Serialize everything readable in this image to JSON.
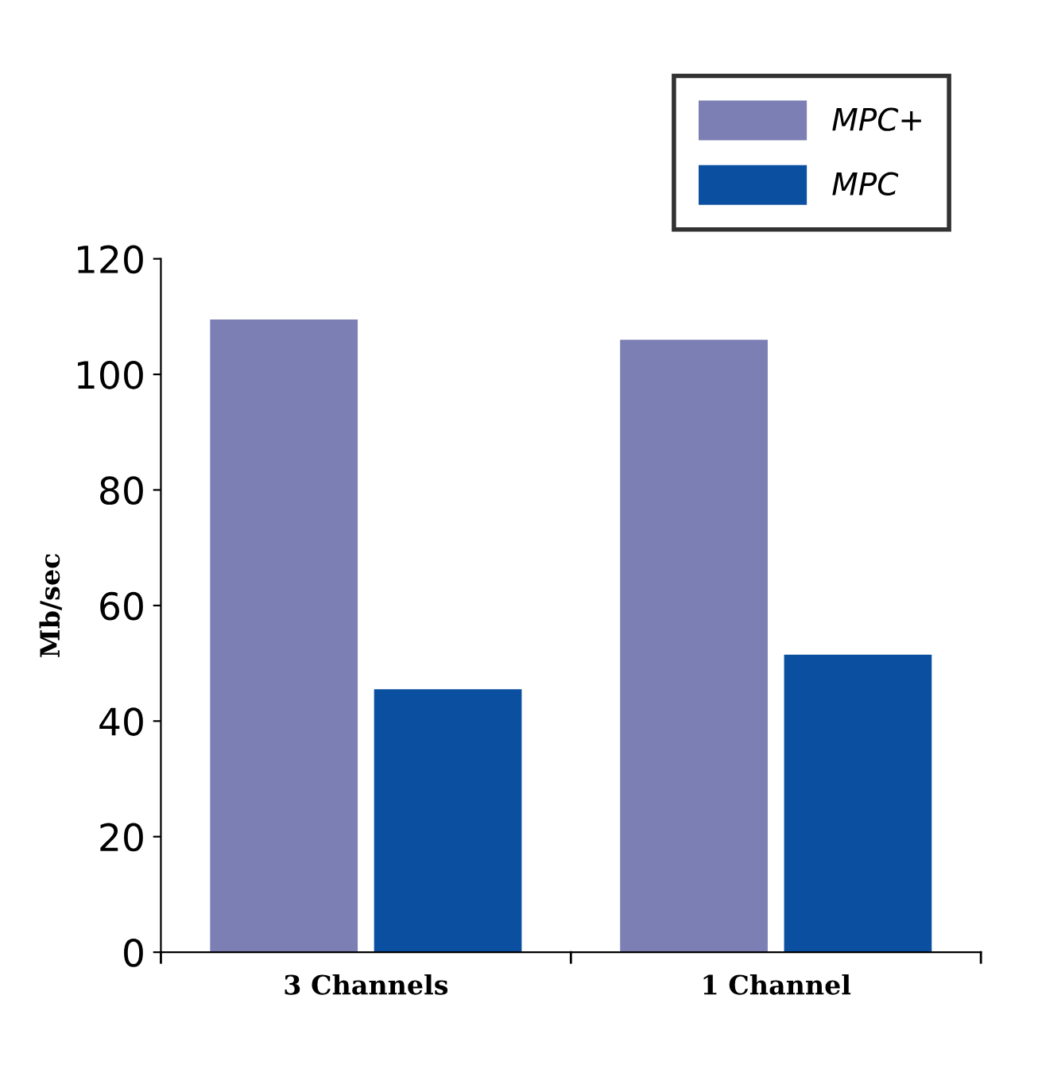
{
  "chart_data": {
    "type": "bar",
    "categories": [
      "3 Channels",
      "1 Channel"
    ],
    "ylabel": "Mb/sec",
    "series": [
      {
        "name": "MPC+",
        "color": "#7b7fb4",
        "values": [
          109.5,
          106
        ]
      },
      {
        "name": "MPC",
        "color": "#0b4fa0",
        "values": [
          45.5,
          51.5
        ]
      }
    ],
    "ylim": [
      0,
      120
    ],
    "yticks": [
      0,
      20,
      40,
      60,
      80,
      100,
      120
    ],
    "grid": false,
    "legend": "top right"
  }
}
